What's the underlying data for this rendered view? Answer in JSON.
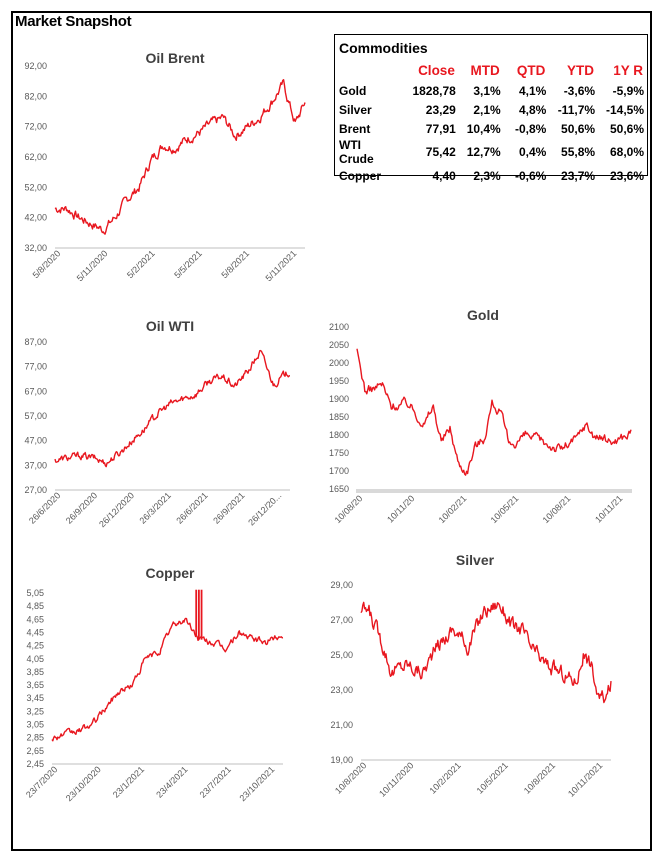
{
  "page": {
    "title": "Market Snapshot"
  },
  "commodities_table": {
    "title": "Commodities",
    "headers": [
      "",
      "Close",
      "MTD",
      "QTD",
      "YTD",
      "1Y R"
    ],
    "rows": [
      [
        "Gold",
        "1828,78",
        "3,1%",
        "4,1%",
        "-3,6%",
        "-5,9%"
      ],
      [
        "Silver",
        "23,29",
        "2,1%",
        "4,8%",
        "-11,7%",
        "-14,5%"
      ],
      [
        "Brent",
        "77,91",
        "10,4%",
        "-0,8%",
        "50,6%",
        "50,6%"
      ],
      [
        "WTI Crude",
        "75,42",
        "12,7%",
        "0,4%",
        "55,8%",
        "68,0%"
      ],
      [
        "Copper",
        "4,40",
        "2,3%",
        "-0,6%",
        "23,7%",
        "23,6%"
      ]
    ]
  },
  "colors": {
    "line": "#e8171f",
    "axis": "#bfbfbf",
    "tick_text": "#595959",
    "title": "#404040"
  },
  "chart_data": [
    {
      "id": "brent",
      "type": "line",
      "title": "Oil Brent",
      "ylim": [
        32,
        92
      ],
      "yticks": [
        "92,00",
        "82,00",
        "72,00",
        "62,00",
        "52,00",
        "42,00",
        "32,00"
      ],
      "xlim": [
        0,
        20.8
      ],
      "xtick_labels": [
        "5/8/2020",
        "5/11/2020",
        "5/2/2021",
        "5/5/2021",
        "5/8/2021",
        "5/11/2021"
      ],
      "x": [
        0,
        1,
        2,
        3,
        4,
        5,
        6,
        7,
        8,
        9,
        10,
        11,
        12,
        13,
        14,
        15,
        16,
        17,
        18,
        19,
        20,
        20.8
      ],
      "values": [
        45,
        45,
        42,
        40,
        38,
        42,
        48,
        52,
        61,
        66,
        65,
        68,
        70,
        73,
        75,
        69,
        72,
        75,
        80,
        86,
        73,
        80
      ],
      "noise": 1.6
    },
    {
      "id": "wti",
      "type": "line",
      "title": "Oil WTI",
      "ylim": [
        27,
        87
      ],
      "yticks": [
        "87,00",
        "77,00",
        "67,00",
        "57,00",
        "47,00",
        "37,00",
        "27,00"
      ],
      "xlim": [
        0,
        18.3
      ],
      "xtick_labels": [
        "26/6/2020",
        "26/9/2020",
        "26/12/2020",
        "26/3/2021",
        "26/6/2021",
        "26/9/2021",
        "26/12/20..."
      ],
      "x": [
        0,
        1,
        2,
        3,
        4,
        5,
        6,
        7,
        8,
        9,
        10,
        11,
        12,
        13,
        14,
        15,
        16,
        17,
        18,
        18.3
      ],
      "values": [
        39,
        40,
        41,
        40,
        38,
        42,
        47,
        52,
        58,
        62,
        64,
        66,
        71,
        73,
        69,
        75,
        83,
        70,
        74,
        75
      ],
      "noise": 1.5
    },
    {
      "id": "gold",
      "type": "line",
      "title": "Gold",
      "ylim": [
        1650,
        2100
      ],
      "yticks": [
        "2100",
        "2050",
        "2000",
        "1950",
        "1900",
        "1850",
        "1800",
        "1750",
        "1700",
        "1650"
      ],
      "xlim": [
        0,
        16.2
      ],
      "xtick_labels": [
        "10/08/20",
        "10/11/20",
        "10/02/21",
        "10/05/21",
        "10/08/21",
        "10/11/21"
      ],
      "x": [
        0,
        0.5,
        1.5,
        2,
        3,
        4,
        4.5,
        5,
        5.5,
        6,
        6.5,
        7,
        7.5,
        8,
        8.5,
        9,
        10,
        11,
        12,
        13,
        13.5,
        14,
        15,
        16,
        16.2
      ],
      "values": [
        2030,
        1920,
        1940,
        1880,
        1890,
        1830,
        1880,
        1780,
        1820,
        1720,
        1700,
        1770,
        1790,
        1890,
        1860,
        1770,
        1800,
        1780,
        1760,
        1790,
        1830,
        1800,
        1780,
        1800,
        1810
      ],
      "noise": 14
    },
    {
      "id": "copper",
      "type": "line",
      "title": "Copper",
      "ylim": [
        2.45,
        5.05
      ],
      "yticks": [
        "5,05",
        "4,85",
        "4,65",
        "4,45",
        "4,25",
        "4,05",
        "3,85",
        "3,65",
        "3,45",
        "3,25",
        "3,05",
        "2,85",
        "2,65",
        "2,45"
      ],
      "xlim": [
        0,
        17.3
      ],
      "xtick_labels": [
        "23/7/2020",
        "23/10/2020",
        "23/1/2021",
        "23/4/2021",
        "23/7/2021",
        "23/10/2021"
      ],
      "x": [
        0,
        1,
        2,
        3,
        4,
        5,
        6,
        7,
        8,
        9,
        10,
        11,
        12,
        13,
        14,
        15,
        16,
        17,
        17.3
      ],
      "values": [
        2.85,
        2.9,
        2.95,
        3.05,
        3.3,
        3.55,
        3.65,
        4.05,
        4.15,
        4.55,
        4.65,
        4.35,
        4.3,
        4.2,
        4.45,
        4.35,
        4.3,
        4.4,
        4.4
      ],
      "noise": 0.05,
      "spikes": [
        {
          "x": 10.8,
          "y": 5.1
        },
        {
          "x": 11.0,
          "y": 5.1
        },
        {
          "x": 11.2,
          "y": 5.1
        }
      ]
    },
    {
      "id": "silver",
      "type": "line",
      "title": "Silver",
      "ylim": [
        19,
        29
      ],
      "yticks": [
        "29,00",
        "27,00",
        "25,00",
        "23,00",
        "21,00",
        "19,00"
      ],
      "xlim": [
        0,
        16.3
      ],
      "xtick_labels": [
        "10/8/2020",
        "10/11/2020",
        "10/2/2021",
        "10/5/2021",
        "10/8/2021",
        "10/11/2021"
      ],
      "x": [
        0,
        0.5,
        1,
        1.5,
        2,
        3,
        4,
        5,
        6,
        7,
        8,
        9,
        10,
        10.5,
        11,
        12,
        13,
        14,
        14.5,
        15,
        15.5,
        16,
        16.3
      ],
      "values": [
        27.5,
        27.5,
        26.5,
        25.5,
        24,
        24.5,
        24,
        25.5,
        26.5,
        25.5,
        27.5,
        28,
        26.5,
        26.5,
        25.5,
        24.5,
        24,
        23.5,
        25,
        24.5,
        22.5,
        22.5,
        23.3
      ],
      "noise": 0.45
    }
  ]
}
